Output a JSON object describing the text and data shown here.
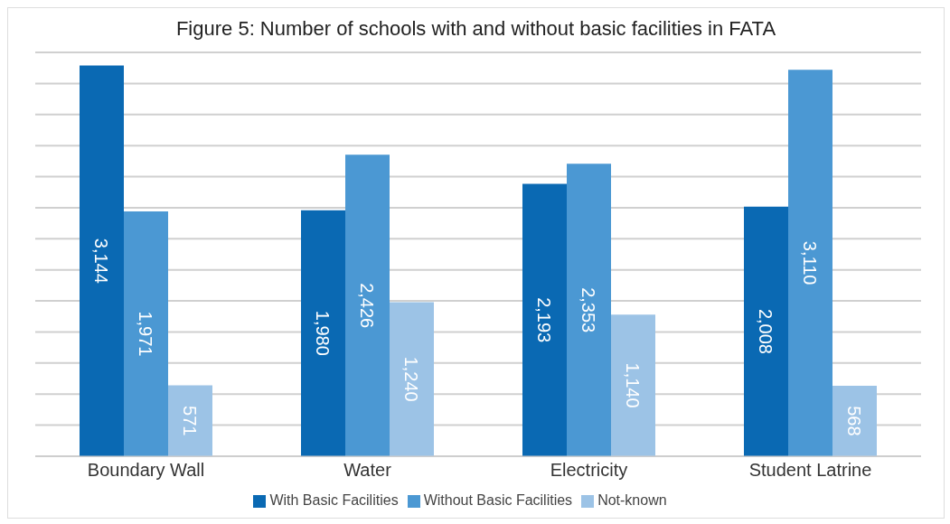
{
  "chart_data": {
    "type": "bar",
    "title": "Figure 5: Number of schools with and without basic facilities in FATA",
    "categories": [
      "Boundary Wall",
      "Water",
      "Electricity",
      "Student Latrine"
    ],
    "series": [
      {
        "name": "With Basic Facilities",
        "color": "#0a69b3",
        "values": [
          3144,
          1980,
          2193,
          2008
        ],
        "value_labels": [
          "3,144",
          "1,980",
          "2,193",
          "2,008"
        ]
      },
      {
        "name": "Without Basic Facilities",
        "color": "#4b98d3",
        "values": [
          1971,
          2426,
          2353,
          3110
        ],
        "value_labels": [
          "1,971",
          "2,426",
          "2,353",
          "3,110"
        ]
      },
      {
        "name": "Not-known",
        "color": "#9cc3e6",
        "values": [
          571,
          1240,
          1140,
          568
        ],
        "value_labels": [
          "571",
          "1,240",
          "1,140",
          "568"
        ]
      }
    ],
    "tick_labels": "x",
    "grid": "y",
    "legend": "bottom"
  }
}
